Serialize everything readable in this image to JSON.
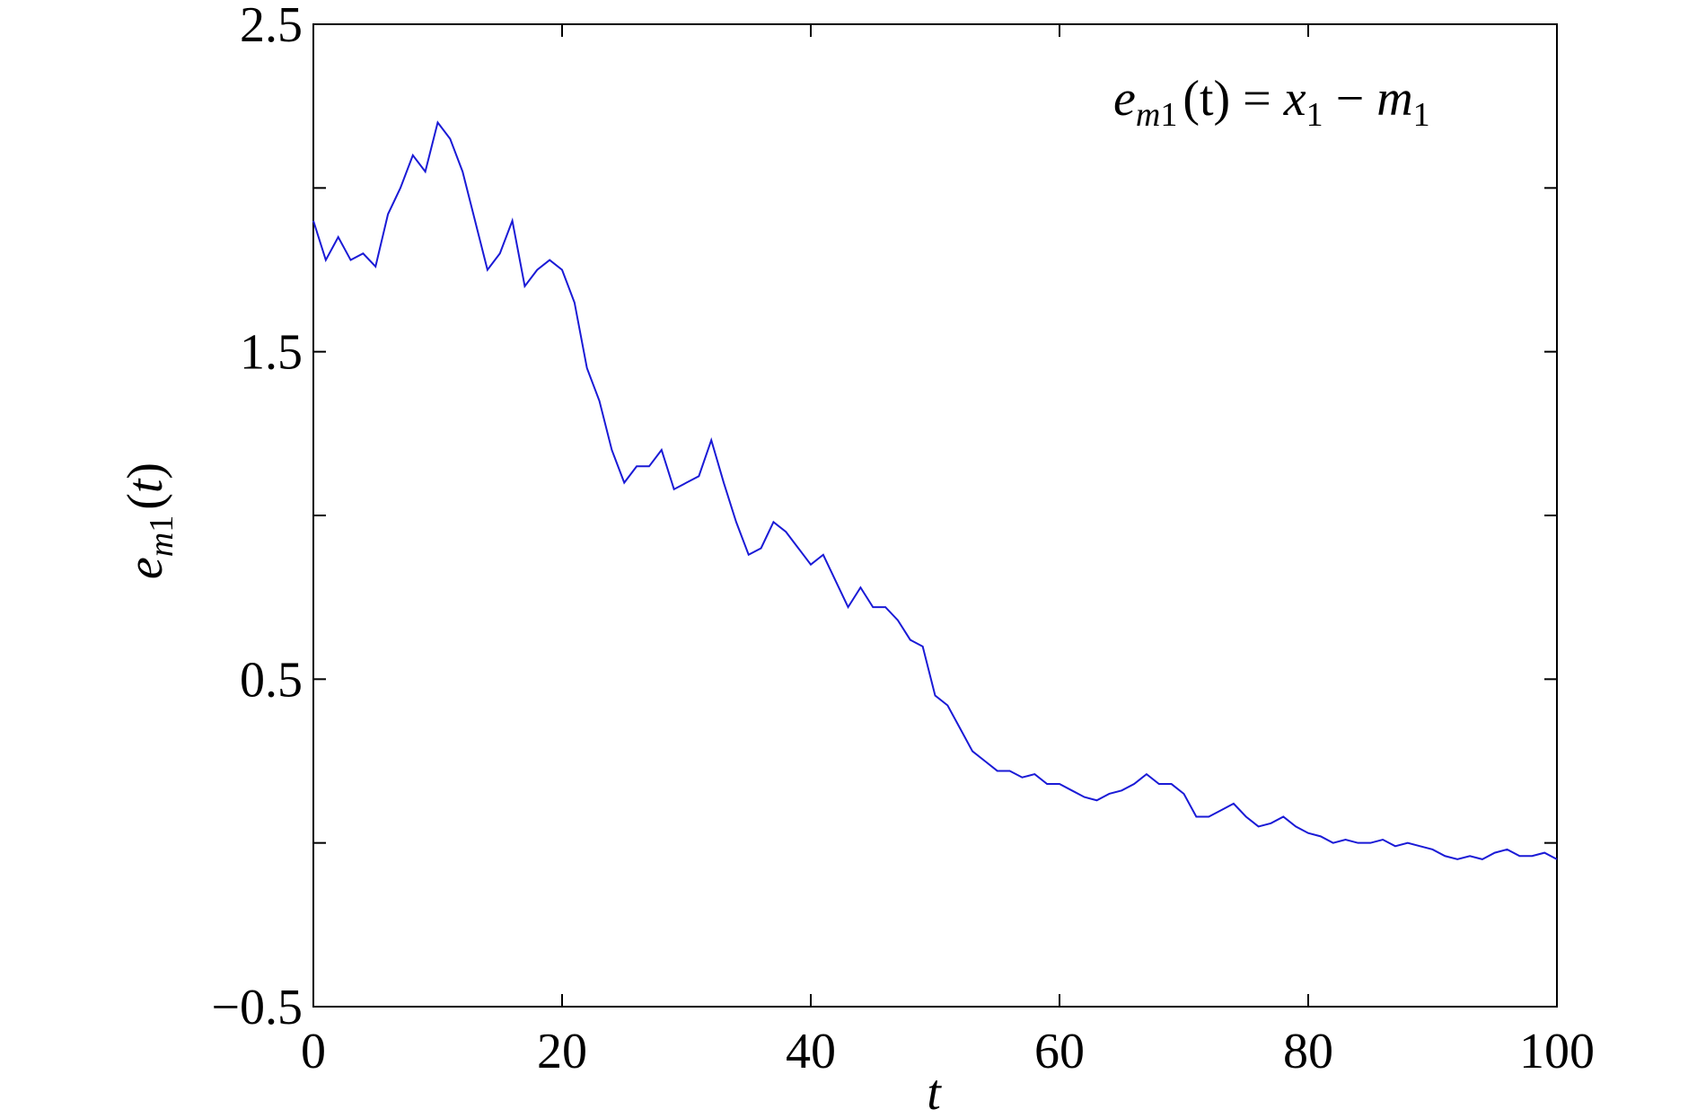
{
  "chart_data": {
    "type": "line",
    "xlabel": "t",
    "ylabel": [
      "e",
      "m",
      "1",
      "(",
      "t",
      ")"
    ],
    "annotation": [
      "e",
      "m",
      "1",
      "(t) = ",
      "x",
      "1",
      " − ",
      "m",
      "1"
    ],
    "x": [
      0,
      1,
      2,
      3,
      4,
      5,
      6,
      7,
      8,
      9,
      10,
      11,
      12,
      13,
      14,
      15,
      16,
      17,
      18,
      19,
      20,
      21,
      22,
      23,
      24,
      25,
      26,
      27,
      28,
      29,
      30,
      31,
      32,
      33,
      34,
      35,
      36,
      37,
      38,
      39,
      40,
      41,
      42,
      43,
      44,
      45,
      46,
      47,
      48,
      49,
      50,
      51,
      52,
      53,
      54,
      55,
      56,
      57,
      58,
      59,
      60,
      61,
      62,
      63,
      64,
      65,
      66,
      67,
      68,
      69,
      70,
      71,
      72,
      73,
      74,
      75,
      76,
      77,
      78,
      79,
      80,
      81,
      82,
      83,
      84,
      85,
      86,
      87,
      88,
      89,
      90,
      91,
      92,
      93,
      94,
      95,
      96,
      97,
      98,
      99,
      100
    ],
    "series": [
      {
        "color": "#1a1ad6",
        "values": [
          1.9,
          1.78,
          1.85,
          1.78,
          1.8,
          1.76,
          1.92,
          2.0,
          2.1,
          2.05,
          2.2,
          2.15,
          2.05,
          1.9,
          1.75,
          1.8,
          1.9,
          1.7,
          1.75,
          1.78,
          1.75,
          1.65,
          1.45,
          1.35,
          1.2,
          1.1,
          1.15,
          1.15,
          1.2,
          1.08,
          1.1,
          1.12,
          1.23,
          1.1,
          0.98,
          0.88,
          0.9,
          0.98,
          0.95,
          0.9,
          0.85,
          0.88,
          0.8,
          0.72,
          0.78,
          0.72,
          0.72,
          0.68,
          0.62,
          0.6,
          0.45,
          0.42,
          0.35,
          0.28,
          0.25,
          0.22,
          0.22,
          0.2,
          0.21,
          0.18,
          0.18,
          0.16,
          0.14,
          0.13,
          0.15,
          0.16,
          0.18,
          0.21,
          0.18,
          0.18,
          0.15,
          0.08,
          0.08,
          0.1,
          0.12,
          0.08,
          0.05,
          0.06,
          0.08,
          0.05,
          0.03,
          0.02,
          0.0,
          0.01,
          0.0,
          0.0,
          0.01,
          -0.01,
          0.0,
          -0.01,
          -0.02,
          -0.04,
          -0.05,
          -0.04,
          -0.05,
          -0.03,
          -0.02,
          -0.04,
          -0.04,
          -0.03,
          -0.05
        ]
      }
    ],
    "xlim": [
      0,
      100
    ],
    "xticks": [
      0,
      20,
      40,
      60,
      80,
      100
    ],
    "ylim": [
      -0.5,
      2.5
    ],
    "yticks": [
      {
        "value": -0.5,
        "label": "−0.5"
      },
      0.5,
      1.5,
      2.5
    ],
    "yminorticks": [
      0,
      1,
      2
    ]
  }
}
